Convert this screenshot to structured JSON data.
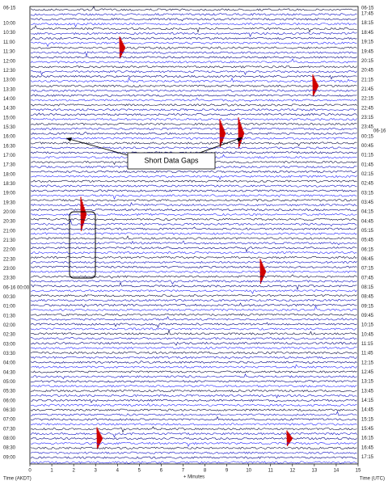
{
  "helicorder": {
    "left_date": "06-15",
    "left_labels": [
      "10:00",
      "10:30",
      "11:00",
      "11:30",
      "12:00",
      "12:30",
      "13:00",
      "13:30",
      "14:00",
      "14:30",
      "15:00",
      "15:30",
      "16:00",
      "16:30",
      "17:00",
      "17:30",
      "18:00",
      "18:30",
      "19:00",
      "19:30",
      "20:00",
      "20:30",
      "21:00",
      "21:30",
      "22:00",
      "22:30",
      "23:00",
      "23:30",
      "06-16 00:00",
      "00:30",
      "01:00",
      "01:30",
      "02:00",
      "02:30",
      "03:00",
      "03:30",
      "04:00",
      "04:30",
      "05:00",
      "05:30",
      "06:00",
      "06:30",
      "07:00",
      "07:30",
      "08:00",
      "08:30",
      "09:00"
    ],
    "right_date_top": "06-15",
    "right_date_mid": "06-16",
    "right_labels": [
      "17:45",
      "18:15",
      "18:45",
      "19:15",
      "19:45",
      "20:15",
      "20:45",
      "21:15",
      "21:45",
      "22:15",
      "22:45",
      "23:15",
      "23:45",
      "00:15",
      "00:45",
      "01:15",
      "01:45",
      "02:15",
      "02:45",
      "03:15",
      "03:45",
      "04:15",
      "04:45",
      "05:15",
      "05:45",
      "06:15",
      "06:45",
      "07:15",
      "07:45",
      "08:15",
      "08:45",
      "09:15",
      "09:45",
      "10:15",
      "10:45",
      "11:15",
      "11:45",
      "12:15",
      "12:45",
      "13:15",
      "13:45",
      "14:15",
      "14:45",
      "15:15",
      "15:45",
      "16:15",
      "16:45",
      "17:15"
    ],
    "x_ticks": [
      0,
      1,
      2,
      3,
      4,
      5,
      6,
      7,
      8,
      9,
      10,
      11,
      12,
      13,
      14,
      15
    ],
    "x_label_left": "Time (AKDT)",
    "x_label_center": "+ Minutes",
    "x_label_right": "Time (UTC)",
    "annotation": "Short Data Gaps"
  }
}
